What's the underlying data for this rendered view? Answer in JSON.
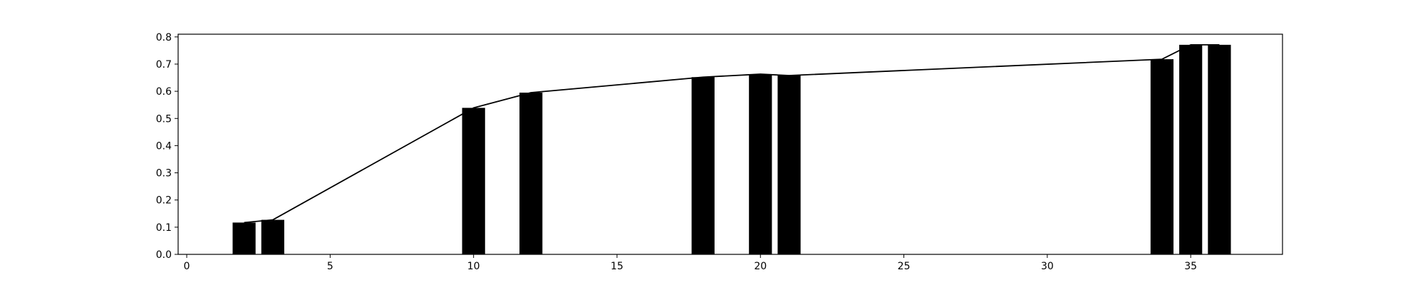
{
  "chart_data": {
    "type": "bar",
    "title": "",
    "xlabel": "",
    "ylabel": "",
    "xlim": [
      -0.3,
      38.2
    ],
    "ylim": [
      0,
      0.81
    ],
    "x_ticks": [
      0,
      5,
      10,
      15,
      20,
      25,
      30,
      35
    ],
    "x_tick_labels": [
      "0",
      "5",
      "10",
      "15",
      "20",
      "25",
      "30",
      "35"
    ],
    "y_ticks": [
      0.0,
      0.1,
      0.2,
      0.3,
      0.4,
      0.5,
      0.6,
      0.7,
      0.8
    ],
    "y_tick_labels": [
      "0.0",
      "0.1",
      "0.2",
      "0.3",
      "0.4",
      "0.5",
      "0.6",
      "0.7",
      "0.8"
    ],
    "grid": false,
    "bar_color": "#000000",
    "line_color": "#000000",
    "bar_width": 0.8,
    "bars": {
      "x": [
        2,
        3,
        10,
        12,
        18,
        20,
        21,
        34,
        35,
        36
      ],
      "values": [
        0.117,
        0.127,
        0.539,
        0.595,
        0.652,
        0.663,
        0.658,
        0.718,
        0.771,
        0.771
      ]
    },
    "line": {
      "x": [
        2,
        3,
        10,
        12,
        18,
        20,
        21,
        34,
        35,
        36
      ],
      "values": [
        0.117,
        0.127,
        0.539,
        0.595,
        0.652,
        0.663,
        0.658,
        0.718,
        0.771,
        0.771
      ]
    }
  }
}
